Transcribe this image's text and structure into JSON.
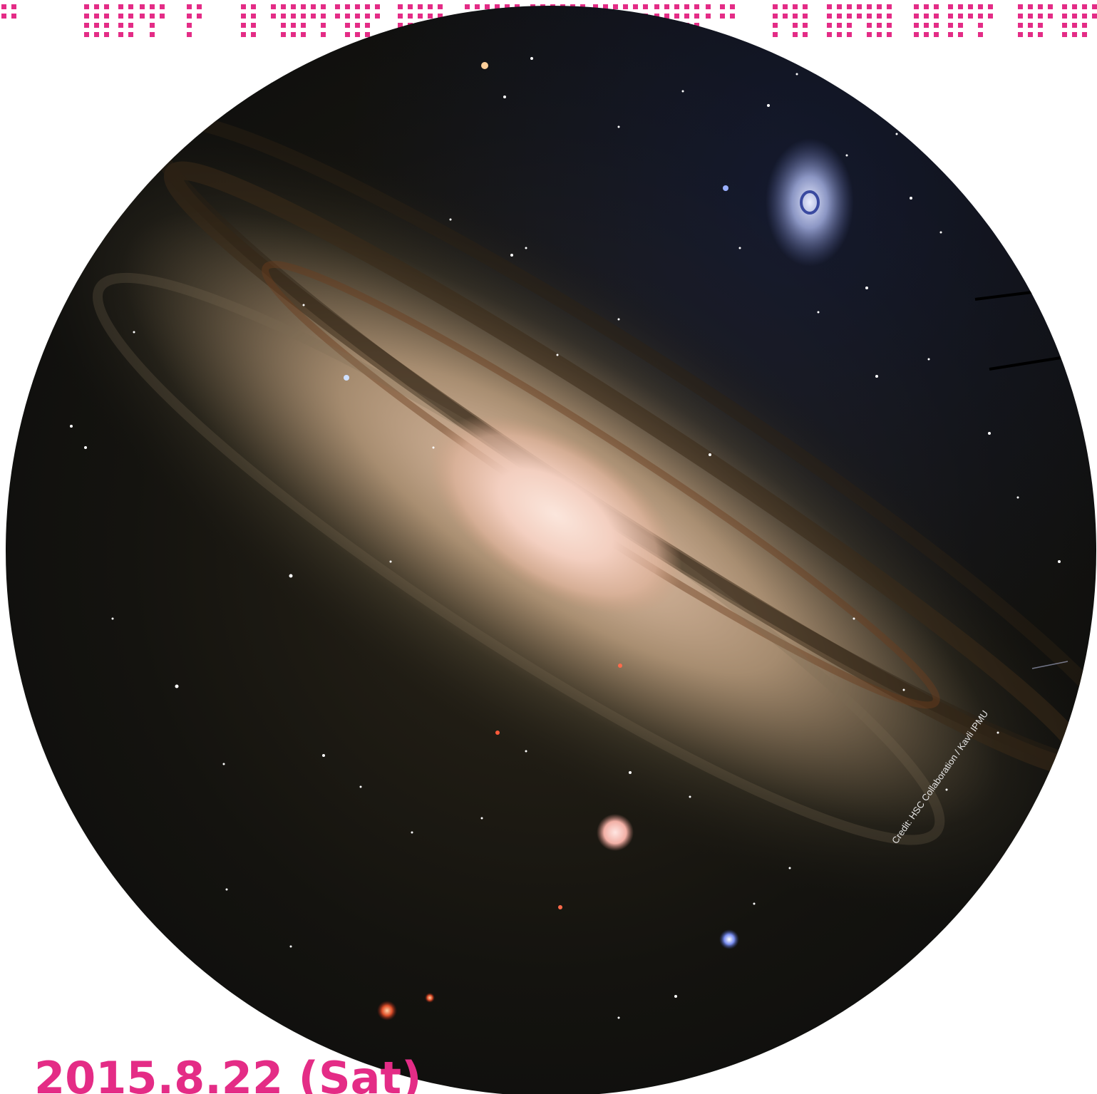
{
  "caption": {
    "date": "2015.8.22 (Sat)",
    "credit": "Credit: HSC Collaboration / Kavli IPMU"
  },
  "colors": {
    "accent": "#e42c86",
    "sky": "#0a0b0c",
    "galaxy_core": "#f6d8cc"
  },
  "icons": {
    "banner": "star-dot-banner"
  }
}
